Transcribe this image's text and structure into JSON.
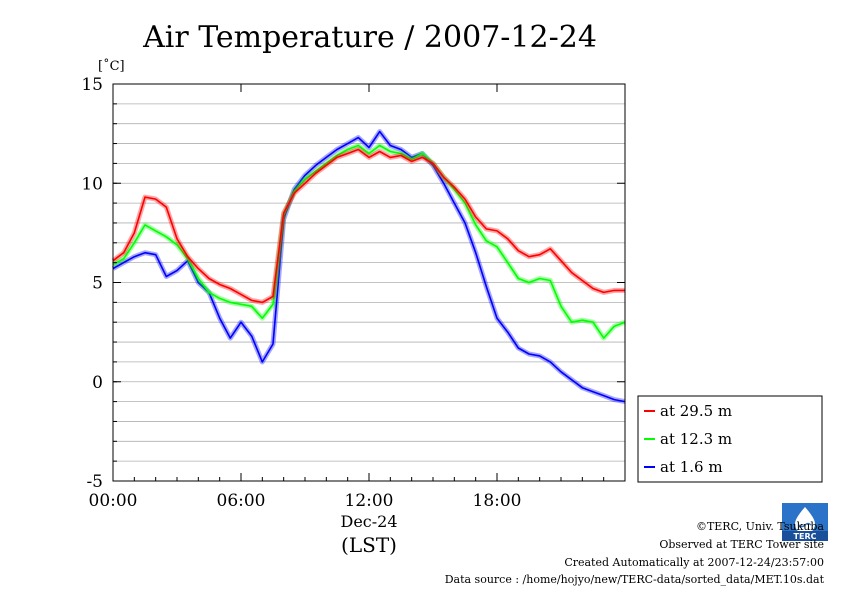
{
  "chart_data": {
    "type": "line",
    "title": "Air Temperature / 2007-12-24",
    "yunit": "[˚C]",
    "xlabel_date": "Dec-24",
    "xlabel": "(LST)",
    "ylim": [
      -5,
      15
    ],
    "yticks": [
      "15",
      "10",
      "5",
      "0",
      "-5"
    ],
    "xlim": [
      0,
      24
    ],
    "xticks": [
      "00:00",
      "06:00",
      "12:00",
      "18:00"
    ],
    "grid": "horizontal-minor",
    "legend_position": "right-bottom-outside",
    "x": [
      0,
      0.5,
      1,
      1.5,
      2,
      2.5,
      3,
      3.5,
      4,
      4.5,
      5,
      5.5,
      6,
      6.5,
      7,
      7.5,
      8,
      8.5,
      9,
      9.5,
      10,
      10.5,
      11,
      11.5,
      12,
      12.5,
      13,
      13.5,
      14,
      14.5,
      15,
      15.5,
      16,
      16.5,
      17,
      17.5,
      18,
      18.5,
      19,
      19.5,
      20,
      20.5,
      21,
      21.5,
      22,
      22.5,
      23,
      23.5,
      24
    ],
    "series": [
      {
        "name": "at 29.5 m",
        "color": "#ff0000",
        "values": [
          6.1,
          6.5,
          7.5,
          9.3,
          9.2,
          8.8,
          7.2,
          6.3,
          5.7,
          5.2,
          4.9,
          4.7,
          4.4,
          4.1,
          4.0,
          4.3,
          8.5,
          9.5,
          10.0,
          10.5,
          10.9,
          11.3,
          11.5,
          11.7,
          11.3,
          11.6,
          11.3,
          11.4,
          11.1,
          11.3,
          11.0,
          10.3,
          9.8,
          9.2,
          8.3,
          7.7,
          7.6,
          7.2,
          6.6,
          6.3,
          6.4,
          6.7,
          6.1,
          5.5,
          5.1,
          4.7,
          4.5,
          4.6,
          4.6
        ]
      },
      {
        "name": "at 12.3 m",
        "color": "#00ff00",
        "values": [
          5.9,
          6.2,
          7.0,
          7.9,
          7.6,
          7.3,
          6.9,
          6.2,
          5.2,
          4.5,
          4.2,
          4.0,
          3.9,
          3.8,
          3.2,
          3.9,
          8.4,
          9.6,
          10.2,
          10.6,
          11.0,
          11.4,
          11.7,
          11.9,
          11.5,
          11.9,
          11.6,
          11.5,
          11.2,
          11.5,
          11.0,
          10.3,
          9.7,
          9.0,
          7.9,
          7.1,
          6.8,
          6.0,
          5.2,
          5.0,
          5.2,
          5.1,
          3.8,
          3.0,
          3.1,
          3.0,
          2.2,
          2.8,
          3.0
        ]
      },
      {
        "name": "at 1.6 m",
        "color": "#0000ff",
        "values": [
          5.7,
          6.0,
          6.3,
          6.5,
          6.4,
          5.3,
          5.6,
          6.1,
          5.0,
          4.5,
          3.2,
          2.2,
          3.0,
          2.3,
          1.0,
          1.9,
          8.2,
          9.7,
          10.4,
          10.9,
          11.3,
          11.7,
          12.0,
          12.3,
          11.8,
          12.6,
          11.9,
          11.7,
          11.3,
          11.5,
          10.9,
          10.0,
          9.0,
          8.0,
          6.5,
          4.8,
          3.2,
          2.5,
          1.7,
          1.4,
          1.3,
          1.0,
          0.5,
          0.1,
          -0.3,
          -0.5,
          -0.7,
          -0.9,
          -1.0
        ]
      }
    ]
  },
  "credits": {
    "copyright": "©TERC, Univ. Tsukuba",
    "observed": "Observed at TERC Tower site",
    "created": "Created Automatically at 2007-12-24/23:57:00",
    "source": "Data source : /home/hojyo/new/TERC-data/sorted_data/MET.10s.dat"
  },
  "logo": {
    "icon": "terc-logo-icon",
    "text": "TERC"
  }
}
